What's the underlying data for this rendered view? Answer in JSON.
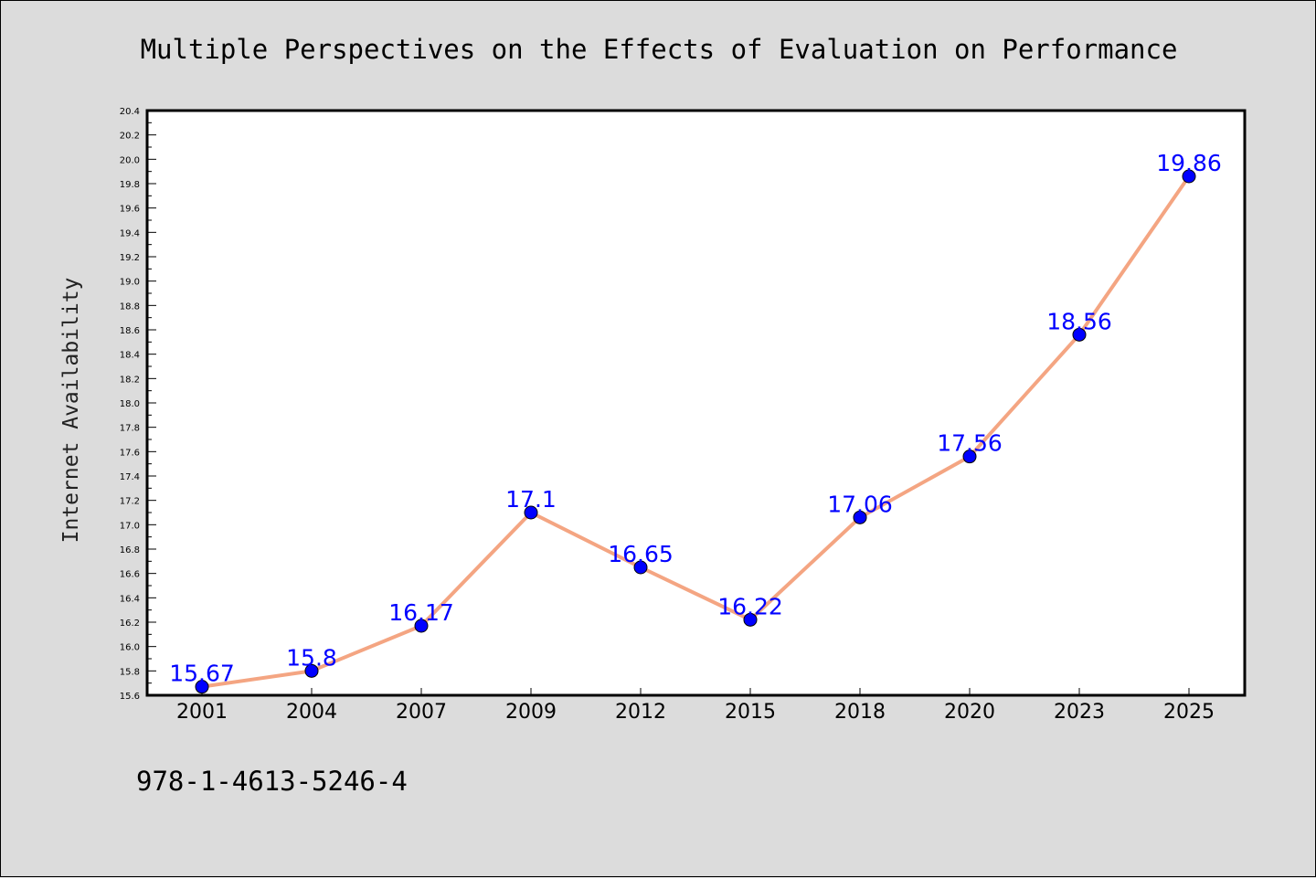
{
  "chart_data": {
    "type": "line",
    "title": "Multiple Perspectives on the Effects of Evaluation on Performance",
    "xlabel": "",
    "ylabel": "Internet Availability",
    "categories": [
      "2001",
      "2004",
      "2007",
      "2009",
      "2012",
      "2015",
      "2018",
      "2020",
      "2023",
      "2025"
    ],
    "series": [
      {
        "values": [
          15.67,
          15.8,
          16.17,
          17.1,
          16.65,
          16.22,
          17.06,
          17.56,
          18.56,
          19.86
        ],
        "labels": [
          "15.67",
          "15.8",
          "16.17",
          "17.1",
          "16.65",
          "16.22",
          "17.06",
          "17.56",
          "18.56",
          "19.86"
        ],
        "line_color": "#f4a582",
        "marker_color": "#0000ff"
      }
    ],
    "ylim": [
      15.6,
      20.4
    ],
    "yticks": [
      "15.6",
      "15.8",
      "16.0",
      "16.2",
      "16.4",
      "16.6",
      "16.8",
      "17.0",
      "17.2",
      "17.4",
      "17.6",
      "17.8",
      "18.0",
      "18.2",
      "18.4",
      "18.6",
      "18.8",
      "19.0",
      "19.2",
      "19.4",
      "19.6",
      "19.8",
      "20.0",
      "20.2",
      "20.4"
    ],
    "grid": false,
    "legend": "none",
    "label_color": "#0000ff"
  },
  "footer": {
    "isbn": "978-1-4613-5246-4"
  }
}
